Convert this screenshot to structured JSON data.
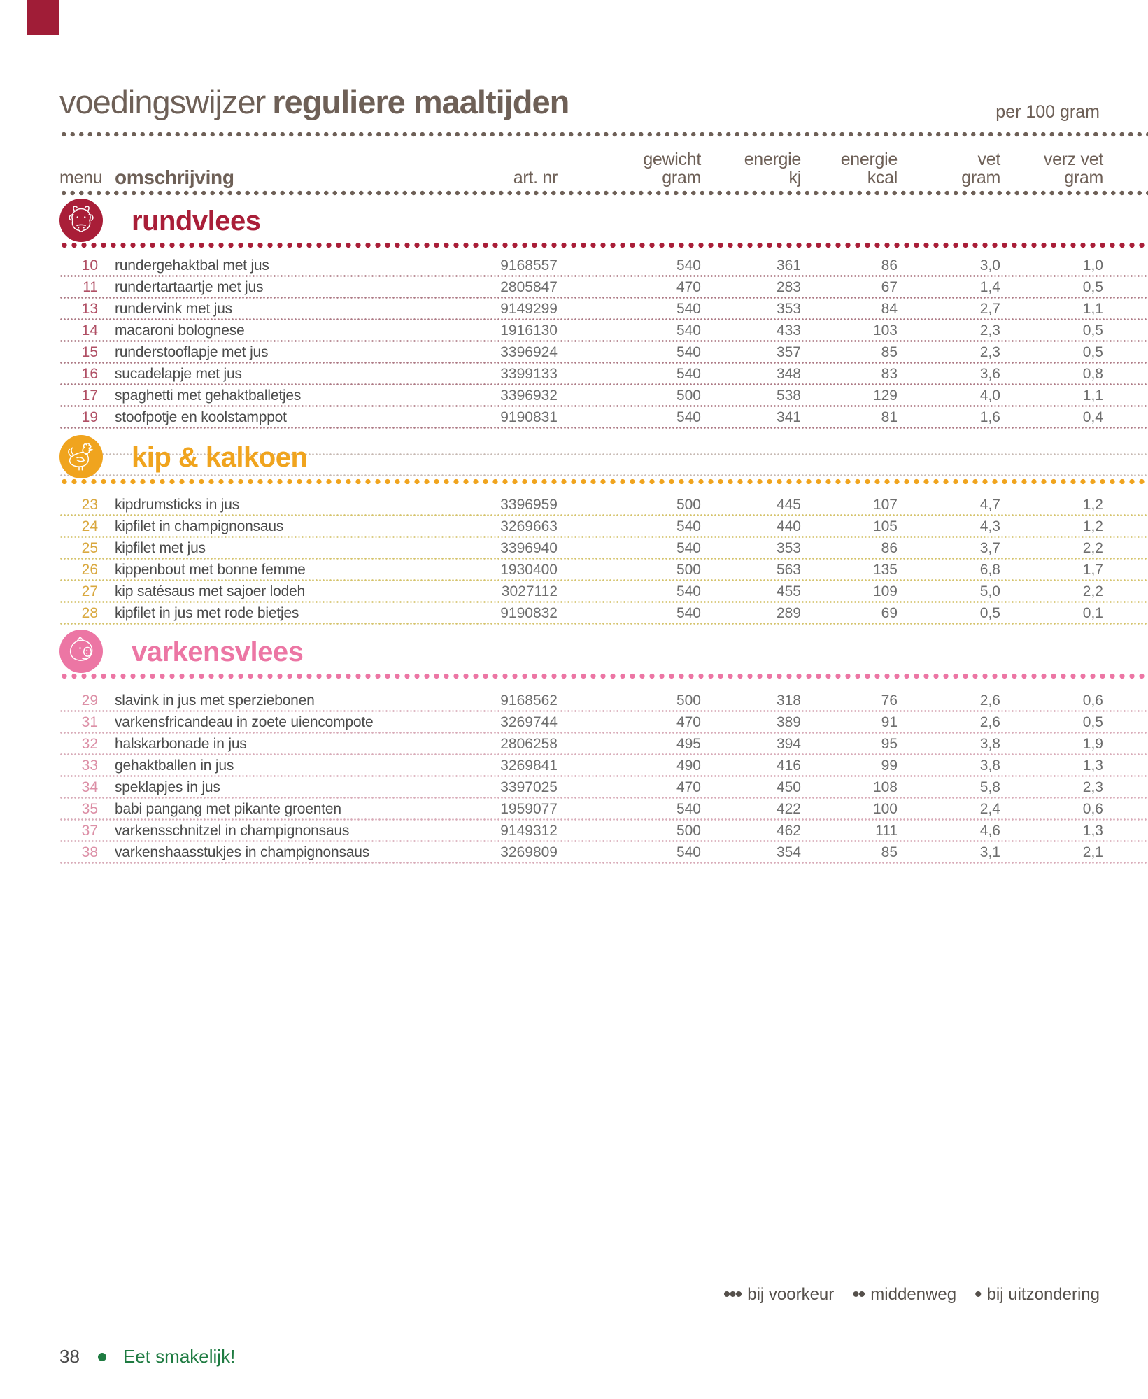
{
  "header": {
    "title_regular": "voedingswijzer",
    "title_bold": "reguliere maaltijden",
    "per_label": "per 100 gram"
  },
  "columns": {
    "menu": "menu",
    "omschrijving": "omschrijving",
    "artnr": "art. nr",
    "gewicht": "gewicht\ngram",
    "energie_kj": "energie\nkj",
    "energie_kcal": "energie\nkcal",
    "vet": "vet\ngram",
    "verz_vet": "verz vet\ngram"
  },
  "sections": [
    {
      "id": "rundvlees",
      "title": "rundvlees",
      "icon": "cow",
      "color": "#a91e38",
      "menu_number_color": "#b05065",
      "separator_color": "#ad7a85",
      "rows": [
        {
          "menu": "10",
          "desc": "rundergehaktbal met jus",
          "art": "9168557",
          "gewicht": "540",
          "kj": "361",
          "kcal": "86",
          "vet": "3,0",
          "verz": "1,0"
        },
        {
          "menu": "11",
          "desc": "rundertartaartje met jus",
          "art": "2805847",
          "gewicht": "470",
          "kj": "283",
          "kcal": "67",
          "vet": "1,4",
          "verz": "0,5"
        },
        {
          "menu": "13",
          "desc": "rundervink met jus",
          "art": "9149299",
          "gewicht": "540",
          "kj": "353",
          "kcal": "84",
          "vet": "2,7",
          "verz": "1,1"
        },
        {
          "menu": "14",
          "desc": "macaroni bolognese",
          "art": "1916130",
          "gewicht": "540",
          "kj": "433",
          "kcal": "103",
          "vet": "2,3",
          "verz": "0,5"
        },
        {
          "menu": "15",
          "desc": "runderstooflapje met jus",
          "art": "3396924",
          "gewicht": "540",
          "kj": "357",
          "kcal": "85",
          "vet": "2,3",
          "verz": "0,5"
        },
        {
          "menu": "16",
          "desc": "sucadelapje met jus",
          "art": "3399133",
          "gewicht": "540",
          "kj": "348",
          "kcal": "83",
          "vet": "3,6",
          "verz": "0,8"
        },
        {
          "menu": "17",
          "desc": "spaghetti met gehaktballetjes",
          "art": "3396932",
          "gewicht": "500",
          "kj": "538",
          "kcal": "129",
          "vet": "4,0",
          "verz": "1,1"
        },
        {
          "menu": "19",
          "desc": "stoofpotje en koolstamppot",
          "art": "9190831",
          "gewicht": "540",
          "kj": "341",
          "kcal": "81",
          "vet": "1,6",
          "verz": "0,4"
        }
      ]
    },
    {
      "id": "kip",
      "title": "kip & kalkoen",
      "icon": "chicken",
      "color": "#f0a41e",
      "menu_number_color": "#d9a83f",
      "separator_color": "#d5c36c",
      "rows": [
        {
          "menu": "23",
          "desc": "kipdrumsticks in jus",
          "art": "3396959",
          "gewicht": "500",
          "kj": "445",
          "kcal": "107",
          "vet": "4,7",
          "verz": "1,2"
        },
        {
          "menu": "24",
          "desc": "kipfilet in champignonsaus",
          "art": "3269663",
          "gewicht": "540",
          "kj": "440",
          "kcal": "105",
          "vet": "4,3",
          "verz": "1,2"
        },
        {
          "menu": "25",
          "desc": "kipfilet met jus",
          "art": "3396940",
          "gewicht": "540",
          "kj": "353",
          "kcal": "86",
          "vet": "3,7",
          "verz": "2,2"
        },
        {
          "menu": "26",
          "desc": "kippenbout met bonne femme",
          "art": "1930400",
          "gewicht": "500",
          "kj": "563",
          "kcal": "135",
          "vet": "6,8",
          "verz": "1,7"
        },
        {
          "menu": "27",
          "desc": "kip satésaus met sajoer lodeh",
          "art": "3027112",
          "gewicht": "540",
          "kj": "455",
          "kcal": "109",
          "vet": "5,0",
          "verz": "2,2"
        },
        {
          "menu": "28",
          "desc": "kipfilet in jus met rode bietjes",
          "art": "9190832",
          "gewicht": "540",
          "kj": "289",
          "kcal": "69",
          "vet": "0,5",
          "verz": "0,1"
        }
      ]
    },
    {
      "id": "varkensvlees",
      "title": "varkensvlees",
      "icon": "pig",
      "color": "#ec76a4",
      "menu_number_color": "#dc8fa6",
      "separator_color": "#d8abb8",
      "rows": [
        {
          "menu": "29",
          "desc": "slavink in jus met sperziebonen",
          "art": "9168562",
          "gewicht": "500",
          "kj": "318",
          "kcal": "76",
          "vet": "2,6",
          "verz": "0,6"
        },
        {
          "menu": "31",
          "desc": "varkensfricandeau in zoete uiencompote",
          "art": "3269744",
          "gewicht": "470",
          "kj": "389",
          "kcal": "91",
          "vet": "2,6",
          "verz": "0,5"
        },
        {
          "menu": "32",
          "desc": "halskarbonade in jus",
          "art": "2806258",
          "gewicht": "495",
          "kj": "394",
          "kcal": "95",
          "vet": "3,8",
          "verz": "1,9"
        },
        {
          "menu": "33",
          "desc": "gehaktballen in jus",
          "art": "3269841",
          "gewicht": "490",
          "kj": "416",
          "kcal": "99",
          "vet": "3,8",
          "verz": "1,3"
        },
        {
          "menu": "34",
          "desc": "speklapjes in jus",
          "art": "3397025",
          "gewicht": "470",
          "kj": "450",
          "kcal": "108",
          "vet": "5,8",
          "verz": "2,3"
        },
        {
          "menu": "35",
          "desc": "babi pangang met pikante groenten",
          "art": "1959077",
          "gewicht": "540",
          "kj": "422",
          "kcal": "100",
          "vet": "2,4",
          "verz": "0,6"
        },
        {
          "menu": "37",
          "desc": "varkensschnitzel in champignonsaus",
          "art": "9149312",
          "gewicht": "500",
          "kj": "462",
          "kcal": "111",
          "vet": "4,6",
          "verz": "1,3"
        },
        {
          "menu": "38",
          "desc": "varkenshaasstukjes in champignonsaus",
          "art": "3269809",
          "gewicht": "540",
          "kj": "354",
          "kcal": "85",
          "vet": "3,1",
          "verz": "2,1"
        }
      ]
    }
  ],
  "legend": {
    "items": [
      {
        "dots": "•••",
        "label": "bij voorkeur"
      },
      {
        "dots": "••",
        "label": "middenweg"
      },
      {
        "dots": "•",
        "label": "bij uitzondering"
      }
    ]
  },
  "footer": {
    "page_number": "38",
    "text": "Eet smakelijk!"
  },
  "colors": {
    "title_brown": "#6e6057",
    "rundvlees_red": "#a91e38",
    "kip_yellow": "#f0a41e",
    "varkens_pink": "#ec76a4",
    "footer_green": "#1e7b41",
    "brand_red": "#a01d37"
  }
}
